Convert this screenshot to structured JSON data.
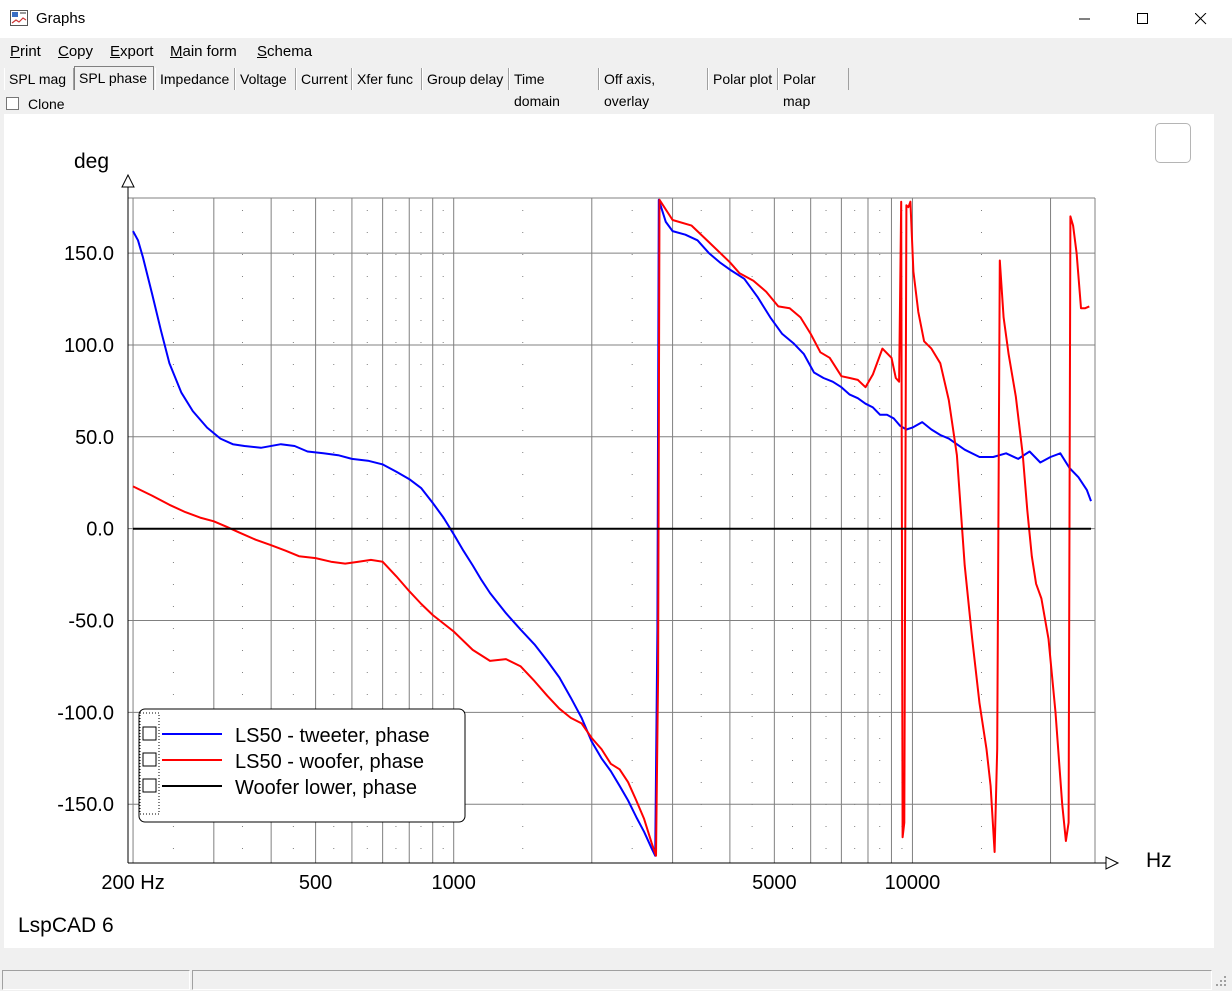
{
  "window": {
    "title": "Graphs",
    "minimize": "—",
    "maximize": "☐",
    "close": "✕"
  },
  "menu": [
    {
      "u": "P",
      "rest": "rint"
    },
    {
      "u": "C",
      "rest": "opy"
    },
    {
      "u": "E",
      "rest": "xport"
    },
    {
      "u": "M",
      "rest": "ain form"
    },
    {
      "u": "S",
      "rest": "chema"
    }
  ],
  "tabs": [
    "SPL mag",
    "SPL phase",
    "Impedance",
    "Voltage",
    "Current",
    "Xfer func",
    "Group delay",
    "Time domain",
    "Off axis, overlay",
    "Polar plot",
    "Polar map"
  ],
  "active_tab": "SPL phase",
  "clone": {
    "label": "Clone",
    "checked": false
  },
  "watermark": "LspCAD 6",
  "chart_data": {
    "type": "line",
    "ylabel": "deg",
    "xlabel": "Hz",
    "x_scale": "log",
    "xlim": [
      195,
      25000
    ],
    "ylim": [
      -182,
      180
    ],
    "y_ticks": [
      150.0,
      100.0,
      50.0,
      0.0,
      -50.0,
      -100.0,
      -150.0
    ],
    "y_tick_labels": [
      "150.0",
      "100.0",
      "50.0",
      "0.0",
      "-50.0",
      "-100.0",
      "-150.0"
    ],
    "x_ticks": [
      200,
      500,
      1000,
      5000,
      10000
    ],
    "x_tick_labels": [
      "200 Hz",
      "500",
      "1000",
      "5000",
      "10000"
    ],
    "grid": true,
    "legend_position": "bottom-left",
    "series": [
      {
        "name": "LS50 - tweeter, phase",
        "color": "#0000ff",
        "points": [
          [
            200,
            162
          ],
          [
            205,
            157
          ],
          [
            210,
            148
          ],
          [
            220,
            128
          ],
          [
            230,
            108
          ],
          [
            240,
            90
          ],
          [
            255,
            74
          ],
          [
            270,
            64
          ],
          [
            290,
            55
          ],
          [
            310,
            49
          ],
          [
            330,
            46
          ],
          [
            350,
            45
          ],
          [
            380,
            44
          ],
          [
            420,
            46
          ],
          [
            450,
            45
          ],
          [
            480,
            42
          ],
          [
            520,
            41
          ],
          [
            560,
            40
          ],
          [
            600,
            38
          ],
          [
            650,
            37
          ],
          [
            700,
            35
          ],
          [
            750,
            31
          ],
          [
            800,
            27
          ],
          [
            850,
            22
          ],
          [
            900,
            14
          ],
          [
            950,
            6
          ],
          [
            1000,
            -3
          ],
          [
            1050,
            -12
          ],
          [
            1100,
            -20
          ],
          [
            1150,
            -28
          ],
          [
            1200,
            -35
          ],
          [
            1300,
            -46
          ],
          [
            1400,
            -55
          ],
          [
            1500,
            -63
          ],
          [
            1600,
            -72
          ],
          [
            1700,
            -81
          ],
          [
            1800,
            -92
          ],
          [
            1900,
            -103
          ],
          [
            2000,
            -116
          ],
          [
            2100,
            -125
          ],
          [
            2200,
            -132
          ],
          [
            2300,
            -140
          ],
          [
            2400,
            -148
          ],
          [
            2500,
            -157
          ],
          [
            2600,
            -165
          ],
          [
            2700,
            -174
          ],
          [
            2750,
            -178
          ],
          [
            2780,
            -55
          ],
          [
            2800,
            179
          ],
          [
            2900,
            167
          ],
          [
            3000,
            162
          ],
          [
            3200,
            160
          ],
          [
            3400,
            157
          ],
          [
            3600,
            150
          ],
          [
            3800,
            145
          ],
          [
            4000,
            141
          ],
          [
            4300,
            136
          ],
          [
            4600,
            126
          ],
          [
            4900,
            115
          ],
          [
            5200,
            106
          ],
          [
            5500,
            101
          ],
          [
            5800,
            95
          ],
          [
            6100,
            85
          ],
          [
            6400,
            82
          ],
          [
            6700,
            80
          ],
          [
            7000,
            77
          ],
          [
            7300,
            73
          ],
          [
            7600,
            71
          ],
          [
            7900,
            68
          ],
          [
            8200,
            66
          ],
          [
            8500,
            62
          ],
          [
            8800,
            62
          ],
          [
            9100,
            60
          ],
          [
            9400,
            56
          ],
          [
            9700,
            54
          ],
          [
            10000,
            55
          ],
          [
            10500,
            58
          ],
          [
            11000,
            54
          ],
          [
            11500,
            51
          ],
          [
            12000,
            49
          ],
          [
            13000,
            43
          ],
          [
            14000,
            39
          ],
          [
            15000,
            39
          ],
          [
            16000,
            41
          ],
          [
            17000,
            38
          ],
          [
            18000,
            42
          ],
          [
            19000,
            36
          ],
          [
            20000,
            39
          ],
          [
            21000,
            41
          ],
          [
            22000,
            33
          ],
          [
            23000,
            28
          ],
          [
            24000,
            21
          ],
          [
            24500,
            15
          ]
        ]
      },
      {
        "name": "LS50 - woofer, phase",
        "color": "#ff0000",
        "points": [
          [
            200,
            23
          ],
          [
            220,
            18
          ],
          [
            240,
            13
          ],
          [
            260,
            9
          ],
          [
            280,
            6
          ],
          [
            300,
            4
          ],
          [
            320,
            1
          ],
          [
            340,
            -2
          ],
          [
            370,
            -6
          ],
          [
            400,
            -9
          ],
          [
            430,
            -12
          ],
          [
            460,
            -15
          ],
          [
            500,
            -16
          ],
          [
            540,
            -18
          ],
          [
            580,
            -19
          ],
          [
            620,
            -18
          ],
          [
            660,
            -17
          ],
          [
            700,
            -18
          ],
          [
            750,
            -26
          ],
          [
            800,
            -34
          ],
          [
            850,
            -41
          ],
          [
            900,
            -47
          ],
          [
            1000,
            -56
          ],
          [
            1100,
            -66
          ],
          [
            1200,
            -72
          ],
          [
            1300,
            -71
          ],
          [
            1400,
            -75
          ],
          [
            1500,
            -83
          ],
          [
            1600,
            -91
          ],
          [
            1700,
            -98
          ],
          [
            1800,
            -103
          ],
          [
            1900,
            -106
          ],
          [
            2000,
            -114
          ],
          [
            2100,
            -120
          ],
          [
            2200,
            -128
          ],
          [
            2300,
            -131
          ],
          [
            2400,
            -138
          ],
          [
            2500,
            -148
          ],
          [
            2600,
            -158
          ],
          [
            2700,
            -171
          ],
          [
            2760,
            -178
          ],
          [
            2790,
            -80
          ],
          [
            2810,
            179
          ],
          [
            3000,
            168
          ],
          [
            3300,
            165
          ],
          [
            3600,
            156
          ],
          [
            4000,
            145
          ],
          [
            4200,
            139
          ],
          [
            4500,
            135
          ],
          [
            4800,
            129
          ],
          [
            5100,
            121
          ],
          [
            5400,
            120
          ],
          [
            5700,
            115
          ],
          [
            6000,
            106
          ],
          [
            6300,
            96
          ],
          [
            6600,
            93
          ],
          [
            7000,
            83
          ],
          [
            7300,
            82
          ],
          [
            7600,
            81
          ],
          [
            7900,
            77
          ],
          [
            8200,
            84
          ],
          [
            8600,
            98
          ],
          [
            9000,
            93
          ],
          [
            9200,
            82
          ],
          [
            9350,
            80
          ],
          [
            9450,
            178
          ],
          [
            9520,
            -168
          ],
          [
            9600,
            -160
          ],
          [
            9700,
            176
          ],
          [
            9800,
            175
          ],
          [
            9900,
            178
          ],
          [
            10050,
            140
          ],
          [
            10300,
            118
          ],
          [
            10600,
            102
          ],
          [
            11000,
            98
          ],
          [
            11500,
            90
          ],
          [
            12000,
            70
          ],
          [
            12500,
            40
          ],
          [
            13000,
            -20
          ],
          [
            13500,
            -60
          ],
          [
            14000,
            -95
          ],
          [
            14500,
            -120
          ],
          [
            14800,
            -140
          ],
          [
            15100,
            -176
          ],
          [
            15300,
            -120
          ],
          [
            15500,
            146
          ],
          [
            15800,
            115
          ],
          [
            16200,
            95
          ],
          [
            16800,
            72
          ],
          [
            17400,
            40
          ],
          [
            17800,
            10
          ],
          [
            18200,
            -15
          ],
          [
            18600,
            -30
          ],
          [
            19100,
            -38
          ],
          [
            19800,
            -60
          ],
          [
            20500,
            -100
          ],
          [
            21200,
            -150
          ],
          [
            21600,
            -170
          ],
          [
            21900,
            -160
          ],
          [
            22100,
            170
          ],
          [
            22400,
            165
          ],
          [
            22800,
            150
          ],
          [
            23300,
            120
          ],
          [
            23800,
            120
          ],
          [
            24300,
            121
          ]
        ]
      },
      {
        "name": "Woofer lower, phase",
        "color": "#000000",
        "points": [
          [
            200,
            0
          ],
          [
            24500,
            0
          ]
        ]
      }
    ]
  }
}
